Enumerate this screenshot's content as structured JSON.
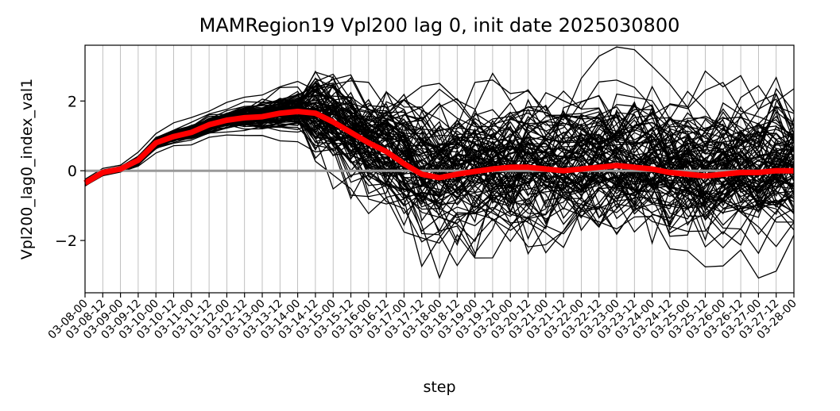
{
  "chart_data": {
    "type": "line",
    "title": "MAMRegion19 Vpl200 lag 0, init date 2025030800",
    "xlabel": "step",
    "ylabel": "Vpl200_lag0_index_val1",
    "x": [
      "03-08-00",
      "03-08-12",
      "03-09-00",
      "03-09-12",
      "03-10-00",
      "03-10-12",
      "03-11-00",
      "03-11-12",
      "03-12-00",
      "03-12-12",
      "03-13-00",
      "03-13-12",
      "03-14-00",
      "03-14-12",
      "03-15-00",
      "03-15-12",
      "03-16-00",
      "03-16-12",
      "03-17-00",
      "03-17-12",
      "03-18-00",
      "03-18-12",
      "03-19-00",
      "03-19-12",
      "03-20-00",
      "03-20-12",
      "03-21-00",
      "03-21-12",
      "03-22-00",
      "03-22-12",
      "03-23-00",
      "03-23-12",
      "03-24-00",
      "03-24-12",
      "03-25-00",
      "03-25-12",
      "03-26-00",
      "03-26-12",
      "03-27-00",
      "03-27-12",
      "03-28-00"
    ],
    "ylim": [
      -3.5,
      3.6
    ],
    "yticks": [
      -2,
      0,
      2
    ],
    "ytick_labels": [
      "−2",
      "0",
      "2"
    ],
    "grid": "vertical",
    "ensemble_members": 100,
    "ensemble_color": "#000000",
    "mean_color": "#ff0000",
    "zero_line_color": "#999999",
    "series": [
      {
        "role": "ensemble-mean",
        "values": [
          -0.35,
          -0.05,
          0.05,
          0.3,
          0.8,
          0.98,
          1.1,
          1.32,
          1.45,
          1.52,
          1.55,
          1.65,
          1.7,
          1.65,
          1.4,
          1.1,
          0.8,
          0.55,
          0.2,
          -0.1,
          -0.2,
          -0.1,
          -0.02,
          0.05,
          0.1,
          0.1,
          0.05,
          0.0,
          0.05,
          0.1,
          0.15,
          0.1,
          0.05,
          -0.05,
          -0.1,
          -0.15,
          -0.1,
          -0.05,
          -0.05,
          0.0,
          0.0
        ]
      }
    ]
  }
}
